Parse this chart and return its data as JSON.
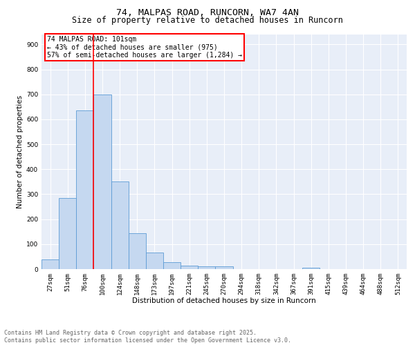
{
  "title1": "74, MALPAS ROAD, RUNCORN, WA7 4AN",
  "title2": "Size of property relative to detached houses in Runcorn",
  "xlabel": "Distribution of detached houses by size in Runcorn",
  "ylabel": "Number of detached properties",
  "categories": [
    "27sqm",
    "51sqm",
    "76sqm",
    "100sqm",
    "124sqm",
    "148sqm",
    "173sqm",
    "197sqm",
    "221sqm",
    "245sqm",
    "270sqm",
    "294sqm",
    "318sqm",
    "342sqm",
    "367sqm",
    "391sqm",
    "415sqm",
    "439sqm",
    "464sqm",
    "488sqm",
    "512sqm"
  ],
  "values": [
    40,
    285,
    635,
    700,
    350,
    145,
    65,
    28,
    15,
    12,
    10,
    0,
    0,
    0,
    0,
    5,
    0,
    0,
    0,
    0,
    0
  ],
  "bar_color": "#c5d8f0",
  "bar_edge_color": "#5b9bd5",
  "red_line_index": 3,
  "annotation_text": "74 MALPAS ROAD: 101sqm\n← 43% of detached houses are smaller (975)\n57% of semi-detached houses are larger (1,284) →",
  "annotation_box_color": "white",
  "annotation_box_edge_color": "red",
  "ylim": [
    0,
    940
  ],
  "yticks": [
    0,
    100,
    200,
    300,
    400,
    500,
    600,
    700,
    800,
    900
  ],
  "bg_color": "#e8eef8",
  "footer_text": "Contains HM Land Registry data © Crown copyright and database right 2025.\nContains public sector information licensed under the Open Government Licence v3.0.",
  "title_fontsize": 9.5,
  "subtitle_fontsize": 8.5,
  "axis_label_fontsize": 7.5,
  "tick_fontsize": 6.5,
  "annotation_fontsize": 7,
  "footer_fontsize": 6
}
